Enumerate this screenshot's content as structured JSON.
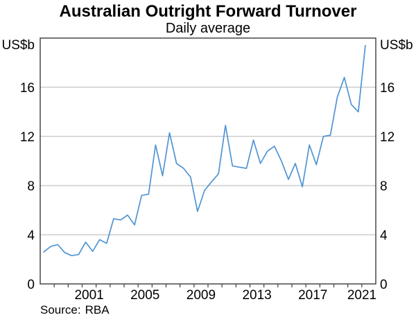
{
  "title": "Australian Outright Forward Turnover",
  "subtitle": "Daily average",
  "source": {
    "label": "Source:",
    "value": "RBA"
  },
  "y_axis": {
    "unit_left": "US$b",
    "unit_right": "US$b",
    "ticks": [
      0,
      4,
      8,
      12,
      16
    ]
  },
  "x_axis": {
    "labels": [
      "2001",
      "2005",
      "2009",
      "2013",
      "2017",
      "2021"
    ]
  },
  "chart_data": {
    "type": "line",
    "title": "Australian Outright Forward Turnover",
    "subtitle": "Daily average",
    "ylabel": "US$b",
    "series_name": "Australian outright forward turnover, daily average (US$b)",
    "frequency": "semiannual",
    "ylim": [
      0,
      20
    ],
    "xlim": [
      1998,
      2022
    ],
    "grid": "horizontal",
    "legend": "none",
    "line_color": "#4F94D3",
    "x": [
      1998.25,
      1998.75,
      1999.25,
      1999.75,
      2000.25,
      2000.75,
      2001.25,
      2001.75,
      2002.25,
      2002.75,
      2003.25,
      2003.75,
      2004.25,
      2004.75,
      2005.25,
      2005.75,
      2006.25,
      2006.75,
      2007.25,
      2007.75,
      2008.25,
      2008.75,
      2009.25,
      2009.75,
      2010.25,
      2010.75,
      2011.25,
      2011.75,
      2012.25,
      2012.75,
      2013.25,
      2013.75,
      2014.25,
      2014.75,
      2015.25,
      2015.75,
      2016.25,
      2016.75,
      2017.25,
      2017.75,
      2018.25,
      2018.75,
      2019.25,
      2019.75,
      2020.25,
      2020.75,
      2021.25
    ],
    "values": [
      2.6,
      3.05,
      3.2,
      2.55,
      2.3,
      2.4,
      3.4,
      2.65,
      3.6,
      3.3,
      5.3,
      5.2,
      5.6,
      4.8,
      7.2,
      7.3,
      11.3,
      8.8,
      12.3,
      9.8,
      9.4,
      8.7,
      5.9,
      7.6,
      8.3,
      8.95,
      12.9,
      9.6,
      9.5,
      9.4,
      11.7,
      9.8,
      10.8,
      11.2,
      10.0,
      8.5,
      9.8,
      7.9,
      11.3,
      9.7,
      12.0,
      12.1,
      15.2,
      16.8,
      14.6,
      14.0,
      19.4
    ]
  }
}
